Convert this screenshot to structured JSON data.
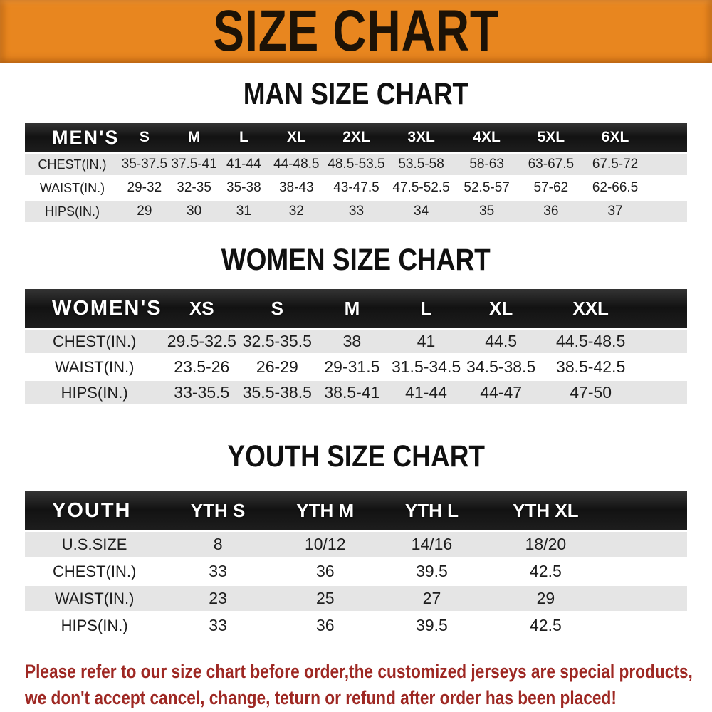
{
  "banner": {
    "title": "SIZE CHART"
  },
  "colors": {
    "banner_orange": "#e8861f",
    "header_black": "#161616",
    "row_gray": "#e5e5e5",
    "notice_red": "#9e2823"
  },
  "chart_data": [
    {
      "type": "table",
      "title": "MAN SIZE CHART",
      "header_label": "MEN'S",
      "columns": [
        "S",
        "M",
        "L",
        "XL",
        "2XL",
        "3XL",
        "4XL",
        "5XL",
        "6XL"
      ],
      "rows": [
        {
          "label": "CHEST(IN.)",
          "values": [
            "35-37.5",
            "37.5-41",
            "41-44",
            "44-48.5",
            "48.5-53.5",
            "53.5-58",
            "58-63",
            "63-67.5",
            "67.5-72"
          ]
        },
        {
          "label": "WAIST(IN.)",
          "values": [
            "29-32",
            "32-35",
            "35-38",
            "38-43",
            "43-47.5",
            "47.5-52.5",
            "52.5-57",
            "57-62",
            "62-66.5"
          ]
        },
        {
          "label": "HIPS(IN.)",
          "values": [
            "29",
            "30",
            "31",
            "32",
            "33",
            "34",
            "35",
            "36",
            "37"
          ]
        }
      ]
    },
    {
      "type": "table",
      "title": "WOMEN SIZE CHART",
      "header_label": "WOMEN'S",
      "columns": [
        "XS",
        "S",
        "M",
        "L",
        "XL",
        "XXL"
      ],
      "rows": [
        {
          "label": "CHEST(IN.)",
          "values": [
            "29.5-32.5",
            "32.5-35.5",
            "38",
            "41",
            "44.5",
            "44.5-48.5"
          ]
        },
        {
          "label": "WAIST(IN.)",
          "values": [
            "23.5-26",
            "26-29",
            "29-31.5",
            "31.5-34.5",
            "34.5-38.5",
            "38.5-42.5"
          ]
        },
        {
          "label": "HIPS(IN.)",
          "values": [
            "33-35.5",
            "35.5-38.5",
            "38.5-41",
            "41-44",
            "44-47",
            "47-50"
          ]
        }
      ]
    },
    {
      "type": "table",
      "title": "YOUTH SIZE CHART",
      "header_label": "YOUTH",
      "columns": [
        "YTH S",
        "YTH M",
        "YTH L",
        "YTH XL"
      ],
      "rows": [
        {
          "label": "U.S.SIZE",
          "values": [
            "8",
            "10/12",
            "14/16",
            "18/20"
          ]
        },
        {
          "label": "CHEST(IN.)",
          "values": [
            "33",
            "36",
            "39.5",
            "42.5"
          ]
        },
        {
          "label": "WAIST(IN.)",
          "values": [
            "23",
            "25",
            "27",
            "29"
          ]
        },
        {
          "label": "HIPS(IN.)",
          "values": [
            "33",
            "36",
            "39.5",
            "42.5"
          ]
        }
      ]
    }
  ],
  "footer": {
    "line1": "Please refer to our size chart before order,the customized jerseys are special products,",
    "line2": "we don't accept cancel, change, teturn or refund after order has been placed!"
  }
}
